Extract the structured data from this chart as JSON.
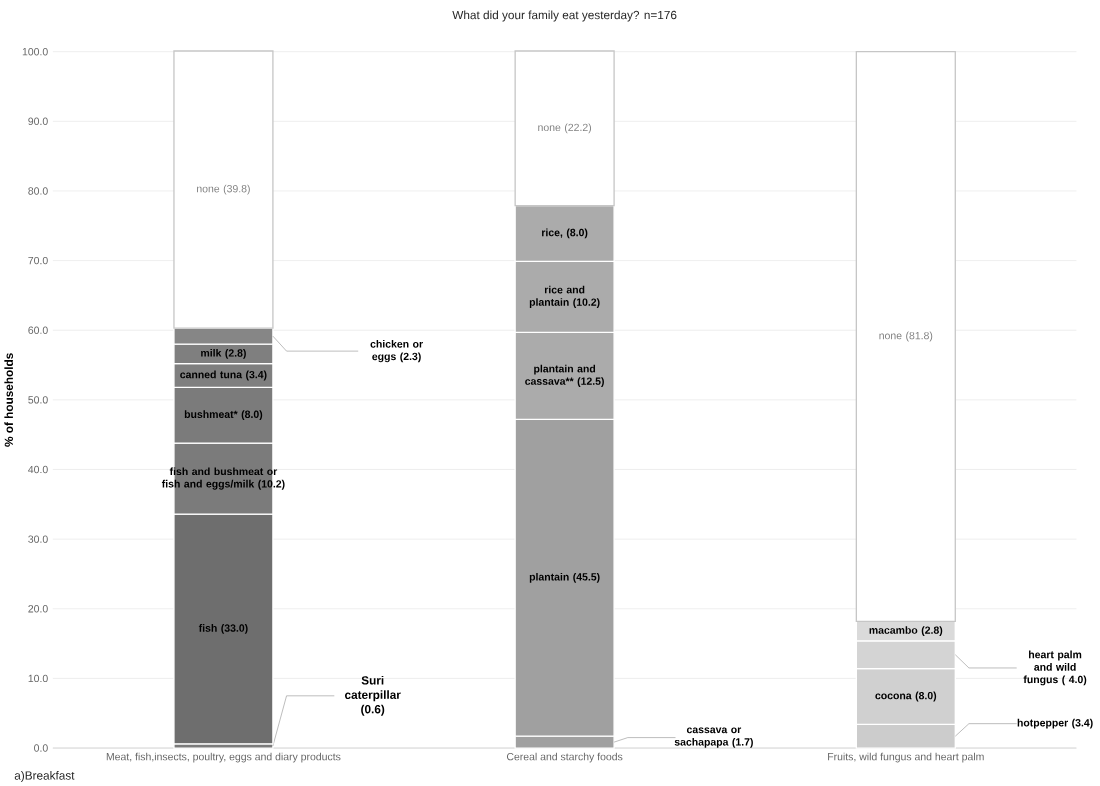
{
  "chart_data": {
    "type": "bar",
    "stacked": true,
    "title": "What did your family eat yesterday?  n=176",
    "ylabel": "% of households",
    "annotations": [
      "a)Breakfast"
    ],
    "categories": [
      "Meat, fish,insects, poultry, eggs and diary products",
      "Cereal and starchy foods",
      "Fruits, wild fungus and heart palm"
    ],
    "series": [
      {
        "values": [
          0.6,
          1.7,
          3.4
        ],
        "colors": [
          "#7b7b7b",
          "#a0a0a0",
          "#cccccc"
        ],
        "value_labels": [
          "Suri caterpillar (0.6)",
          "cassava or sachapapa (1.7)",
          "hotpepper (3.4)"
        ]
      },
      {
        "values": [
          33.0,
          45.5,
          8.0
        ],
        "colors": [
          "#6e6e6e",
          "#a0a0a0",
          "#d0d0d0"
        ],
        "value_labels": [
          "fish (33.0)",
          "plantain (45.5)",
          "cocona (8.0)"
        ]
      },
      {
        "values": [
          10.2,
          12.5,
          4.0
        ],
        "colors": [
          "#7b7b7b",
          "#ababab",
          "#d4d4d4"
        ],
        "value_labels": [
          "fish and bushmeat or fish and eggs/milk (10.2)",
          "plantain and cassava** (12.5)",
          "heart palm and wild fungus ( 4.0)"
        ]
      },
      {
        "values": [
          8.0,
          10.2,
          2.8
        ],
        "colors": [
          "#7b7b7b",
          "#ababab",
          "#dadada"
        ],
        "value_labels": [
          "bushmeat* (8.0)",
          "rice and plantain (10.2)",
          "macambo (2.8)"
        ]
      },
      {
        "values": [
          3.4,
          8.0,
          81.8
        ],
        "colors": [
          "#7f7f7f",
          "#ababab",
          "#ffffff"
        ],
        "value_labels": [
          "canned tuna (3.4)",
          "rice, (8.0)",
          "none (81.8)"
        ]
      },
      {
        "values": [
          2.8,
          22.2,
          null
        ],
        "colors": [
          "#7f7f7f",
          "#ffffff",
          null
        ],
        "value_labels": [
          "milk (2.8)",
          "none (22.2)",
          null
        ]
      },
      {
        "values": [
          2.3,
          null,
          null
        ],
        "colors": [
          "#868686",
          null,
          null
        ],
        "value_labels": [
          "chicken or eggs (2.3)",
          null,
          null
        ]
      },
      {
        "values": [
          39.8,
          null,
          null
        ],
        "colors": [
          "#ffffff",
          null,
          null
        ],
        "value_labels": [
          "none (39.8)",
          null,
          null
        ]
      }
    ],
    "ylim": [
      0,
      100
    ],
    "yticks": [
      {
        "value": 0,
        "label": "0.0"
      },
      {
        "value": 10,
        "label": "10.0"
      },
      {
        "value": 20,
        "label": "20.0"
      },
      {
        "value": 30,
        "label": "30.0"
      },
      {
        "value": 40,
        "label": "40.0"
      },
      {
        "value": 50,
        "label": "50.0"
      },
      {
        "value": 60,
        "label": "60.0"
      },
      {
        "value": 70,
        "label": "70.0"
      },
      {
        "value": 80,
        "label": "80.0"
      },
      {
        "value": 90,
        "label": "90.0"
      },
      {
        "value": 100,
        "label": "100.0"
      }
    ],
    "grid": "y"
  }
}
